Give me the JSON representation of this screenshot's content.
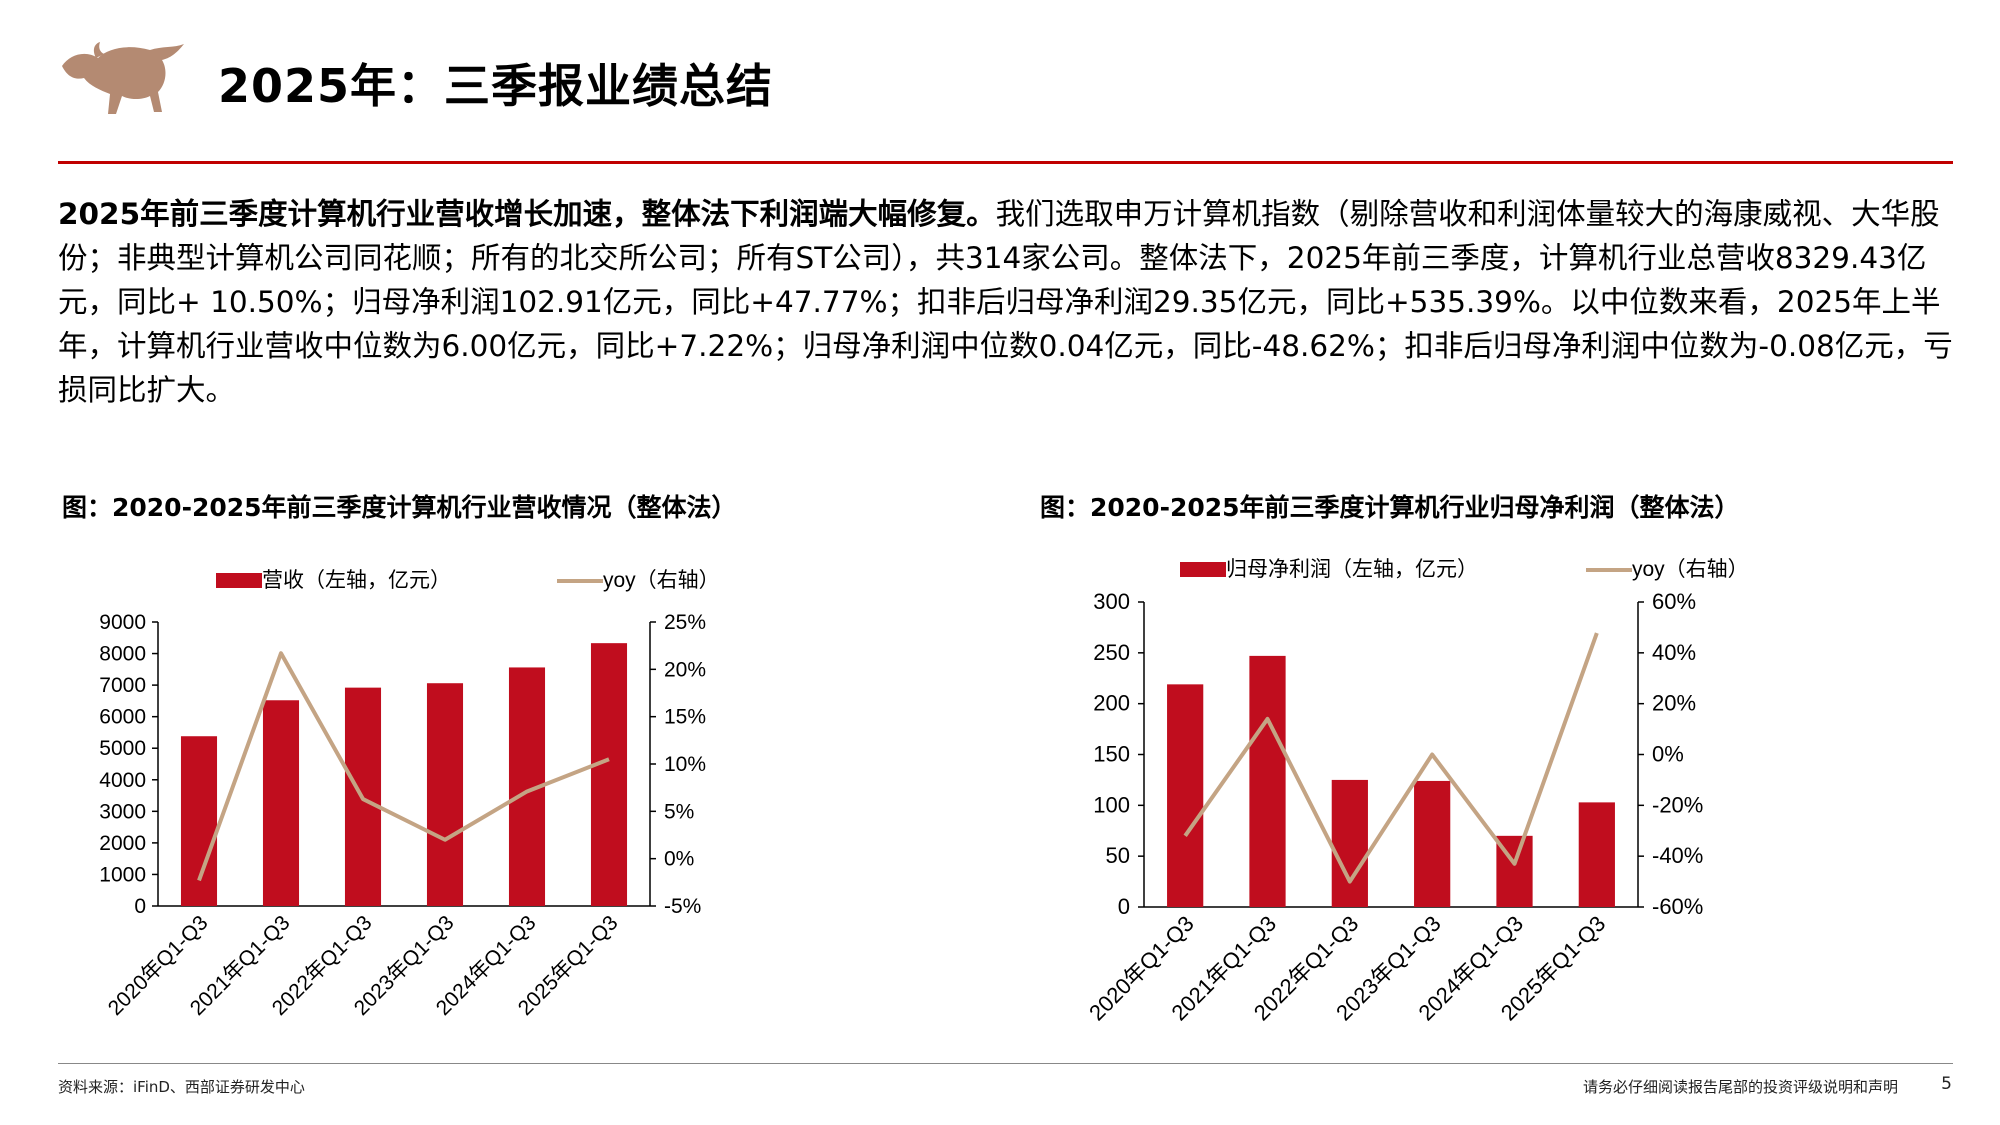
{
  "header": {
    "title": "2025年：三季报业绩总结",
    "logo_icon": "bull-icon"
  },
  "summary": {
    "lead": "2025年前三季度计算机行业营收增长加速，整体法下利润端大幅修复。",
    "body": "我们选取申万计算机指数（剔除营收和利润体量较大的海康威视、大华股份；非典型计算机公司同花顺；所有的北交所公司；所有ST公司），共314家公司。整体法下，2025年前三季度，计算机行业总营收8329.43亿元，同比+ 10.50%；归母净利润102.91亿元，同比+47.77%；扣非后归母净利润29.35亿元，同比+535.39%。以中位数来看，2025年上半年，计算机行业营收中位数为6.00亿元，同比+7.22%；归母净利润中位数0.04亿元，同比-48.62%；扣非后归母净利润中位数为-0.08亿元，亏损同比扩大。"
  },
  "colors": {
    "bar": "#c00d1e",
    "line": "#c4a484",
    "accent": "#c00000"
  },
  "chart_data": [
    {
      "type": "bar",
      "caption": "图：2020-2025年前三季度计算机行业营收情况（整体法）",
      "categories": [
        "2020年Q1-Q3",
        "2021年Q1-Q3",
        "2022年Q1-Q3",
        "2023年Q1-Q3",
        "2024年Q1-Q3",
        "2025年Q1-Q3"
      ],
      "series": [
        {
          "name": "营收（左轴，亿元）",
          "kind": "bar",
          "axis": "left",
          "values": [
            5380,
            6520,
            6920,
            7060,
            7560,
            8329.43
          ]
        },
        {
          "name": "yoy（右轴）",
          "kind": "line",
          "axis": "right",
          "values": [
            -2.3,
            21.7,
            6.3,
            2.0,
            7.1,
            10.5
          ]
        }
      ],
      "ylim_left": [
        0,
        9000
      ],
      "ylim_right": [
        -5,
        25
      ],
      "yticks_left": [
        "9000",
        "8000",
        "7000",
        "6000",
        "5000",
        "4000",
        "3000",
        "2000",
        "1000",
        "0"
      ],
      "yticks_right": [
        "25%",
        "20%",
        "15%",
        "10%",
        "5%",
        "0%",
        "-5%"
      ]
    },
    {
      "type": "bar",
      "caption": "图：2020-2025年前三季度计算机行业归母净利润（整体法）",
      "categories": [
        "2020年Q1-Q3",
        "2021年Q1-Q3",
        "2022年Q1-Q3",
        "2023年Q1-Q3",
        "2024年Q1-Q3",
        "2025年Q1-Q3"
      ],
      "series": [
        {
          "name": "归母净利润（左轴，亿元）",
          "kind": "bar",
          "axis": "left",
          "values": [
            219,
            247,
            125,
            124,
            70,
            102.91
          ]
        },
        {
          "name": "yoy（右轴）",
          "kind": "line",
          "axis": "right",
          "values": [
            -32,
            14,
            -50,
            0,
            -43,
            47.77
          ]
        }
      ],
      "ylim_left": [
        0,
        300
      ],
      "ylim_right": [
        -60,
        60
      ],
      "yticks_left": [
        "300",
        "250",
        "200",
        "150",
        "100",
        "50",
        "0"
      ],
      "yticks_right": [
        "60%",
        "40%",
        "20%",
        "0%",
        "-20%",
        "-40%",
        "-60%"
      ]
    }
  ],
  "footer": {
    "source": "资料来源：iFinD、西部证券研发中心",
    "disclaimer": "请务必仔细阅读报告尾部的投资评级说明和声明",
    "page": "5"
  }
}
